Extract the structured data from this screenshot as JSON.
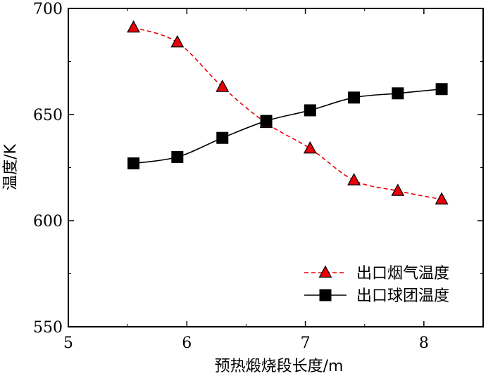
{
  "chart_data": {
    "type": "line",
    "xlabel": "预热煅烧段长度/m",
    "ylabel": "温度/K",
    "xlim": [
      5,
      8.5
    ],
    "ylim": [
      550,
      700
    ],
    "xticks": [
      5,
      6,
      7,
      8
    ],
    "yticks": [
      550,
      600,
      650,
      700
    ],
    "grid": false,
    "legend_position": "bottom-right",
    "series": [
      {
        "name": "出口烟气温度",
        "marker": "triangle",
        "line_style": "dashed",
        "color": "#e8000b",
        "marker_fill": "#e8000b",
        "marker_edge": "#000000",
        "x": [
          5.55,
          5.92,
          6.3,
          6.67,
          7.04,
          7.41,
          7.78,
          8.15
        ],
        "y": [
          691,
          684,
          663,
          646,
          634,
          619,
          614,
          610
        ]
      },
      {
        "name": "出口球团温度",
        "marker": "square",
        "line_style": "solid",
        "color": "#000000",
        "marker_fill": "#000000",
        "marker_edge": "#000000",
        "x": [
          5.55,
          5.92,
          6.3,
          6.67,
          7.04,
          7.41,
          7.78,
          8.15
        ],
        "y": [
          627,
          630,
          639,
          647,
          652,
          658,
          660,
          662
        ]
      }
    ]
  }
}
